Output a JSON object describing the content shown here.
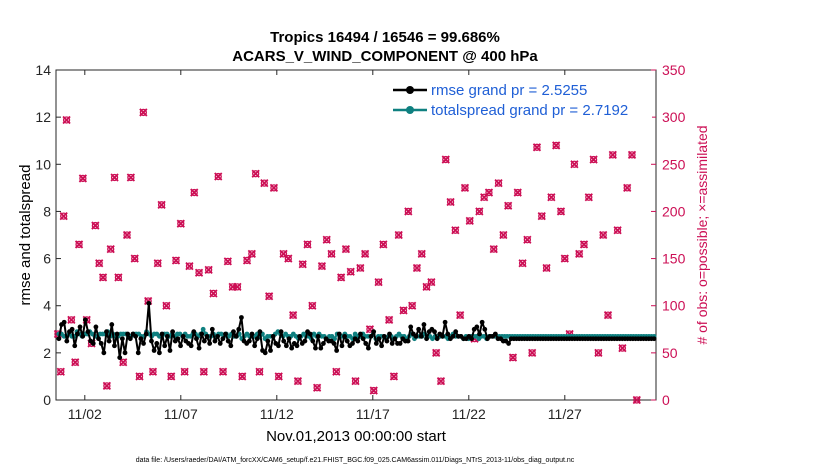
{
  "chart_data": {
    "type": "line",
    "title": "Tropics 16494 / 16546 = 99.686%",
    "subtitle": "ACARS_V_WIND_COMPONENT @ 400 hPa",
    "xlabel": "Nov.01,2013 00:00:00 start",
    "ylabel": "rmse and totalspread",
    "ylabel_right": "# of obs: o=possible; ×=assimilated",
    "xlim": [
      0.5,
      31.75
    ],
    "ylim": [
      0,
      14
    ],
    "ylim_right": [
      0,
      350
    ],
    "x_ticks": [
      2,
      7,
      12,
      17,
      22,
      27
    ],
    "x_tick_labels": [
      "11/02",
      "11/07",
      "11/12",
      "11/17",
      "11/22",
      "11/27"
    ],
    "y_ticks": [
      0,
      2,
      4,
      6,
      8,
      10,
      12,
      14
    ],
    "y_tick_labels": [
      "0",
      "2",
      "4",
      "6",
      "8",
      "10",
      "12",
      "14"
    ],
    "y_right_ticks": [
      0,
      50,
      100,
      150,
      200,
      250,
      300,
      350
    ],
    "y_right_tick_labels": [
      "0",
      "50",
      "100",
      "150",
      "200",
      "250",
      "300",
      "350"
    ],
    "legend_position": "top-right",
    "series": [
      {
        "name": "rmse grand pr = 2.5255",
        "color": "#000000",
        "axis": "left",
        "values": [
          2.6,
          3.2,
          3.3,
          2.5,
          2.9,
          3.0,
          2.3,
          2.8,
          3.1,
          2.7,
          3.4,
          2.9,
          2.5,
          2.4,
          3.1,
          2.6,
          2.4,
          2.0,
          2.9,
          2.5,
          3.2,
          2.3,
          2.8,
          1.8,
          2.6,
          2.0,
          2.8,
          2.6,
          2.8,
          2.7,
          2.0,
          2.6,
          2.4,
          2.8,
          4.1,
          2.5,
          2.1,
          2.4,
          2.0,
          2.8,
          2.3,
          2.7,
          2.1,
          2.9,
          2.5,
          2.6,
          2.3,
          2.7,
          2.5,
          2.4,
          2.3,
          2.9,
          2.6,
          2.2,
          2.8,
          2.5,
          2.7,
          2.4,
          3.0,
          2.5,
          2.7,
          2.4,
          2.6,
          2.8,
          2.5,
          2.3,
          2.9,
          2.7,
          3.0,
          3.5,
          2.5,
          2.4,
          2.5,
          2.8,
          2.3,
          2.6,
          2.9,
          2.1,
          2.0,
          2.5,
          2.1,
          2.7,
          2.4,
          2.3,
          2.9,
          2.5,
          2.3,
          2.6,
          2.2,
          2.4,
          2.3,
          2.7,
          2.4,
          2.5,
          2.9,
          2.8,
          2.5,
          2.2,
          2.7,
          2.2,
          2.4,
          2.6,
          2.5,
          2.5,
          2.4,
          2.1,
          2.8,
          2.3,
          2.7,
          2.5,
          2.3,
          2.4,
          2.6,
          2.5,
          2.8,
          2.6,
          2.4,
          2.2,
          2.7,
          2.9,
          2.4,
          2.6,
          2.3,
          2.7,
          2.5,
          2.8,
          2.4,
          2.6,
          2.4,
          2.4,
          2.6,
          2.5,
          2.5,
          3.1,
          2.8,
          2.7,
          3.0,
          2.7,
          3.2,
          2.6,
          2.9,
          3.0,
          2.9,
          2.6,
          2.8,
          2.7,
          3.3,
          2.8,
          2.6,
          2.7,
          2.9,
          2.7,
          2.7,
          2.6,
          2.6,
          2.7,
          2.6,
          3.0,
          3.1,
          2.8,
          3.3,
          3.0,
          2.6,
          2.7,
          2.7,
          2.8,
          2.6,
          2.6,
          2.5,
          2.5,
          2.4,
          2.6,
          2.6,
          2.6,
          2.6,
          2.6,
          2.6,
          2.6,
          2.6,
          2.6,
          2.6,
          2.6,
          2.6,
          2.6,
          2.6,
          2.6,
          2.6,
          2.6,
          2.6,
          2.6,
          2.6,
          2.6,
          2.6,
          2.6,
          2.6,
          2.6,
          2.6,
          2.6,
          2.6,
          2.6,
          2.6,
          2.6,
          2.6,
          2.6,
          2.6,
          2.6,
          2.6,
          2.6,
          2.6,
          2.6,
          2.6,
          2.6,
          2.6,
          2.6,
          2.6,
          2.6,
          2.6,
          2.6,
          2.6,
          2.6,
          2.6,
          2.6,
          2.6,
          2.6,
          2.6,
          2.6
        ]
      },
      {
        "name": "totalspread grand pr = 2.7192",
        "color": "#0f8080",
        "axis": "left",
        "values": [
          2.8,
          2.8,
          2.7,
          2.7,
          2.8,
          2.7,
          2.7,
          2.9,
          2.8,
          2.7,
          2.8,
          2.8,
          2.9,
          2.8,
          2.7,
          2.7,
          2.8,
          2.8,
          2.8,
          2.9,
          2.7,
          2.8,
          2.7,
          2.7,
          2.8,
          2.8,
          2.8,
          2.7,
          2.7,
          2.8,
          2.8,
          2.8,
          2.7,
          2.7,
          2.9,
          2.8,
          2.7,
          2.8,
          2.8,
          2.7,
          2.7,
          2.8,
          2.8,
          2.7,
          2.8,
          2.7,
          2.8,
          2.8,
          2.7,
          2.8,
          2.7,
          2.7,
          2.8,
          2.8,
          2.7,
          2.8,
          3.0,
          2.8,
          2.7,
          2.7,
          2.8,
          2.7,
          2.8,
          2.8,
          2.7,
          2.8,
          2.7,
          2.8,
          2.7,
          2.7,
          2.8,
          2.6,
          2.7,
          2.8,
          2.7,
          2.7,
          2.7,
          2.8,
          2.7,
          2.8,
          2.6,
          2.7,
          2.7,
          2.7,
          2.8,
          2.9,
          2.8,
          2.7,
          2.8,
          2.7,
          2.7,
          2.8,
          2.7,
          2.6,
          2.7,
          2.8,
          2.7,
          2.7,
          2.6,
          2.8,
          2.7,
          2.8,
          2.7,
          2.7,
          2.6,
          2.7,
          2.7,
          2.6,
          2.8,
          2.7,
          2.7,
          2.8,
          2.7,
          2.7,
          2.6,
          2.8,
          2.7,
          2.7,
          2.8,
          2.7,
          2.7,
          2.7,
          2.8,
          2.6,
          2.7,
          2.7,
          2.7,
          2.6,
          2.7,
          2.7,
          2.6,
          2.7,
          2.8,
          2.7,
          2.7,
          2.6,
          2.7,
          2.8,
          2.6,
          2.7,
          2.7,
          2.7,
          2.8,
          2.7,
          2.7,
          2.6,
          2.7,
          2.7,
          2.7,
          2.7,
          2.7,
          2.6,
          2.7,
          2.8,
          2.7,
          2.7,
          2.7,
          2.6,
          2.7,
          2.6,
          2.7,
          2.7,
          2.7,
          2.6,
          2.7,
          2.7,
          2.6,
          2.7,
          2.7,
          2.7,
          2.7,
          2.7,
          2.7,
          2.7,
          2.7,
          2.7,
          2.7,
          2.7,
          2.7,
          2.7,
          2.7,
          2.7,
          2.7,
          2.7,
          2.7,
          2.7,
          2.7,
          2.7,
          2.7,
          2.7,
          2.7,
          2.7,
          2.7,
          2.7,
          2.7,
          2.7,
          2.7,
          2.7,
          2.7,
          2.7,
          2.7,
          2.7,
          2.7,
          2.7,
          2.7,
          2.7,
          2.7,
          2.7,
          2.7,
          2.7,
          2.7,
          2.7,
          2.7,
          2.7,
          2.7,
          2.7,
          2.7,
          2.7,
          2.7,
          2.7,
          2.7,
          2.7,
          2.7,
          2.7,
          2.7,
          2.7,
          2.7,
          2.7,
          2.7,
          2.7,
          2.7,
          2.7
        ]
      },
      {
        "name": "obs possible / assimilated",
        "color": "#cc0f55",
        "axis": "right",
        "points": [
          [
            0.6,
            70
          ],
          [
            0.75,
            30
          ],
          [
            0.9,
            195
          ],
          [
            1.05,
            297
          ],
          [
            1.3,
            85
          ],
          [
            1.5,
            40
          ],
          [
            1.7,
            165
          ],
          [
            1.9,
            235
          ],
          [
            2.1,
            85
          ],
          [
            2.35,
            60
          ],
          [
            2.55,
            185
          ],
          [
            2.75,
            145
          ],
          [
            2.95,
            130
          ],
          [
            3.15,
            15
          ],
          [
            3.35,
            160
          ],
          [
            3.55,
            236
          ],
          [
            3.75,
            130
          ],
          [
            4.0,
            40
          ],
          [
            4.2,
            175
          ],
          [
            4.4,
            236
          ],
          [
            4.6,
            150
          ],
          [
            4.85,
            25
          ],
          [
            5.05,
            305
          ],
          [
            5.3,
            105
          ],
          [
            5.55,
            30
          ],
          [
            5.8,
            145
          ],
          [
            6.0,
            207
          ],
          [
            6.25,
            100
          ],
          [
            6.5,
            25
          ],
          [
            6.75,
            148
          ],
          [
            7.0,
            187
          ],
          [
            7.2,
            30
          ],
          [
            7.45,
            142
          ],
          [
            7.7,
            220
          ],
          [
            7.95,
            135
          ],
          [
            8.2,
            30
          ],
          [
            8.45,
            138
          ],
          [
            8.7,
            113
          ],
          [
            8.95,
            237
          ],
          [
            9.2,
            30
          ],
          [
            9.45,
            147
          ],
          [
            9.7,
            120
          ],
          [
            9.95,
            120
          ],
          [
            10.2,
            25
          ],
          [
            10.45,
            148
          ],
          [
            10.7,
            155
          ],
          [
            10.9,
            240
          ],
          [
            11.1,
            30
          ],
          [
            11.35,
            230
          ],
          [
            11.6,
            110
          ],
          [
            11.85,
            225
          ],
          [
            12.1,
            25
          ],
          [
            12.35,
            155
          ],
          [
            12.6,
            150
          ],
          [
            12.85,
            90
          ],
          [
            13.1,
            20
          ],
          [
            13.35,
            144
          ],
          [
            13.6,
            165
          ],
          [
            13.85,
            100
          ],
          [
            14.1,
            13
          ],
          [
            14.35,
            142
          ],
          [
            14.6,
            170
          ],
          [
            14.85,
            155
          ],
          [
            15.1,
            30
          ],
          [
            15.35,
            130
          ],
          [
            15.6,
            160
          ],
          [
            15.85,
            136
          ],
          [
            16.1,
            20
          ],
          [
            16.35,
            140
          ],
          [
            16.6,
            155
          ],
          [
            16.85,
            75
          ],
          [
            17.05,
            10
          ],
          [
            17.3,
            125
          ],
          [
            17.55,
            165
          ],
          [
            17.85,
            85
          ],
          [
            18.1,
            25
          ],
          [
            18.35,
            175
          ],
          [
            18.6,
            95
          ],
          [
            18.85,
            200
          ],
          [
            19.05,
            100
          ],
          [
            19.3,
            140
          ],
          [
            19.55,
            155
          ],
          [
            19.8,
            120
          ],
          [
            20.05,
            125
          ],
          [
            20.3,
            50
          ],
          [
            20.55,
            20
          ],
          [
            20.8,
            255
          ],
          [
            21.05,
            210
          ],
          [
            21.3,
            180
          ],
          [
            21.55,
            90
          ],
          [
            21.8,
            225
          ],
          [
            22.05,
            190
          ],
          [
            22.3,
            65
          ],
          [
            22.55,
            200
          ],
          [
            22.8,
            215
          ],
          [
            23.05,
            220
          ],
          [
            23.3,
            160
          ],
          [
            23.55,
            230
          ],
          [
            23.8,
            175
          ],
          [
            24.05,
            206
          ],
          [
            24.3,
            45
          ],
          [
            24.55,
            220
          ],
          [
            24.8,
            145
          ],
          [
            25.05,
            170
          ],
          [
            25.3,
            50
          ],
          [
            25.55,
            268
          ],
          [
            25.8,
            195
          ],
          [
            26.05,
            140
          ],
          [
            26.3,
            215
          ],
          [
            26.55,
            270
          ],
          [
            26.8,
            200
          ],
          [
            27.0,
            150
          ],
          [
            27.25,
            70
          ],
          [
            27.5,
            250
          ],
          [
            27.75,
            155
          ],
          [
            28.0,
            165
          ],
          [
            28.25,
            215
          ],
          [
            28.5,
            255
          ],
          [
            28.75,
            50
          ],
          [
            29.0,
            175
          ],
          [
            29.25,
            90
          ],
          [
            29.5,
            260
          ],
          [
            29.75,
            180
          ],
          [
            30.0,
            55
          ],
          [
            30.25,
            225
          ],
          [
            30.5,
            260
          ],
          [
            30.75,
            0
          ]
        ]
      }
    ]
  },
  "footer": "data file: /Users/raeder/DAI/ATM_forcXX/CAM6_setup/f.e21.FHIST_BGC.f09_025.CAM6assim.011/Diags_NTrS_2013-11/obs_diag_output.nc"
}
